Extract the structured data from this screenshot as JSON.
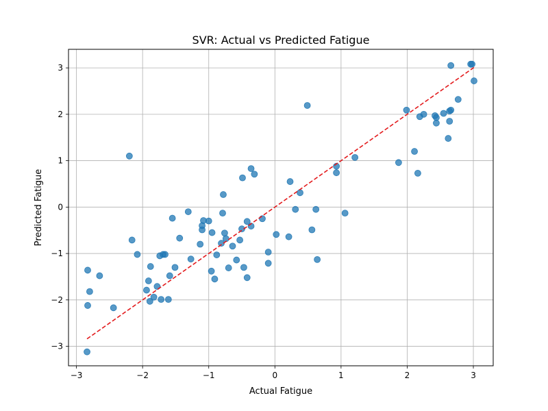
{
  "chart_data": {
    "type": "scatter",
    "title": "SVR: Actual vs Predicted Fatigue",
    "xlabel": "Actual Fatigue",
    "ylabel": "Predicted Fatigue",
    "xlim": [
      -3.12,
      3.3
    ],
    "ylim": [
      -3.42,
      3.4
    ],
    "xticks": [
      -3,
      -2,
      -1,
      0,
      1,
      2,
      3
    ],
    "yticks": [
      -3,
      -2,
      -1,
      0,
      1,
      2,
      3
    ],
    "xtick_labels": [
      "−3",
      "−2",
      "−1",
      "0",
      "1",
      "2",
      "3"
    ],
    "ytick_labels": [
      "−3",
      "−2",
      "−1",
      "0",
      "1",
      "2",
      "3"
    ],
    "grid": true,
    "colors": {
      "points": "#1f77b4",
      "reference": "#e31a1c",
      "grid": "#b0b0b0"
    },
    "reference_line": {
      "style": "dashed",
      "from": [
        -2.84,
        -2.84
      ],
      "to": [
        3.02,
        3.02
      ]
    },
    "points": [
      [
        -2.84,
        -3.12
      ],
      [
        -2.83,
        -1.36
      ],
      [
        -2.83,
        -2.12
      ],
      [
        -2.8,
        -1.82
      ],
      [
        -2.65,
        -1.48
      ],
      [
        -2.44,
        -2.17
      ],
      [
        -2.2,
        1.1
      ],
      [
        -2.16,
        -0.71
      ],
      [
        -2.08,
        -1.02
      ],
      [
        -1.94,
        -1.79
      ],
      [
        -1.91,
        -1.59
      ],
      [
        -1.89,
        -2.03
      ],
      [
        -1.88,
        -1.28
      ],
      [
        -1.83,
        -1.94
      ],
      [
        -1.78,
        -1.71
      ],
      [
        -1.74,
        -1.05
      ],
      [
        -1.72,
        -1.99
      ],
      [
        -1.69,
        -1.02
      ],
      [
        -1.66,
        -1.02
      ],
      [
        -1.61,
        -1.99
      ],
      [
        -1.59,
        -1.48
      ],
      [
        -1.55,
        -0.24
      ],
      [
        -1.51,
        -1.3
      ],
      [
        -1.44,
        -0.67
      ],
      [
        -1.31,
        -0.1
      ],
      [
        -1.27,
        -1.12
      ],
      [
        -1.13,
        -0.8
      ],
      [
        -1.1,
        -0.49
      ],
      [
        -1.1,
        -0.4
      ],
      [
        -1.08,
        -0.29
      ],
      [
        -1.0,
        -0.3
      ],
      [
        -0.96,
        -1.38
      ],
      [
        -0.95,
        -0.55
      ],
      [
        -0.91,
        -1.55
      ],
      [
        -0.88,
        -1.03
      ],
      [
        -0.81,
        -0.78
      ],
      [
        -0.79,
        -0.13
      ],
      [
        -0.78,
        0.27
      ],
      [
        -0.76,
        -0.56
      ],
      [
        -0.74,
        -0.68
      ],
      [
        -0.7,
        -1.31
      ],
      [
        -0.64,
        -0.84
      ],
      [
        -0.58,
        -1.14
      ],
      [
        -0.53,
        -0.71
      ],
      [
        -0.5,
        -0.47
      ],
      [
        -0.49,
        0.63
      ],
      [
        -0.47,
        -1.3
      ],
      [
        -0.42,
        -0.31
      ],
      [
        -0.42,
        -1.52
      ],
      [
        -0.36,
        -0.41
      ],
      [
        -0.36,
        0.83
      ],
      [
        -0.31,
        0.71
      ],
      [
        -0.19,
        -0.25
      ],
      [
        -0.1,
        -0.97
      ],
      [
        -0.1,
        -1.21
      ],
      [
        0.02,
        -0.59
      ],
      [
        0.21,
        -0.64
      ],
      [
        0.23,
        0.55
      ],
      [
        0.31,
        -0.05
      ],
      [
        0.38,
        0.31
      ],
      [
        0.49,
        2.19
      ],
      [
        0.56,
        -0.49
      ],
      [
        0.62,
        -0.05
      ],
      [
        0.64,
        -1.13
      ],
      [
        0.93,
        0.88
      ],
      [
        0.93,
        0.74
      ],
      [
        1.06,
        -0.13
      ],
      [
        1.21,
        1.07
      ],
      [
        1.87,
        0.96
      ],
      [
        1.99,
        2.09
      ],
      [
        2.11,
        1.2
      ],
      [
        2.16,
        0.73
      ],
      [
        2.19,
        1.95
      ],
      [
        2.25,
        2.0
      ],
      [
        2.42,
        1.97
      ],
      [
        2.44,
        1.93
      ],
      [
        2.44,
        1.81
      ],
      [
        2.55,
        2.02
      ],
      [
        2.62,
        1.48
      ],
      [
        2.64,
        2.07
      ],
      [
        2.64,
        1.85
      ],
      [
        2.66,
        2.09
      ],
      [
        2.66,
        3.05
      ],
      [
        2.77,
        2.32
      ],
      [
        2.96,
        3.08
      ],
      [
        2.98,
        3.08
      ],
      [
        3.01,
        2.72
      ]
    ]
  }
}
